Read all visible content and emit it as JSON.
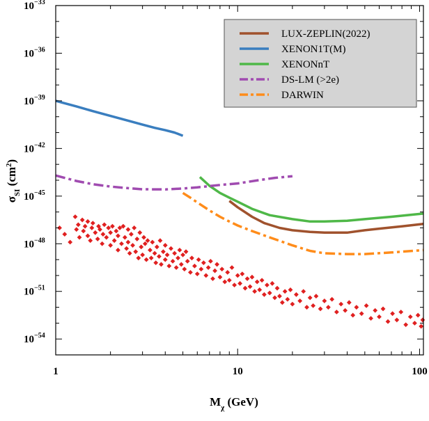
{
  "chart_data": {
    "type": "line",
    "title": "",
    "xlabel": {
      "main": "M",
      "sub": "χ",
      "rest": " (GeV)"
    },
    "ylabel": {
      "main": "σ",
      "sub": "SI",
      "rest": " (cm",
      "sup": "2",
      "close": ")"
    },
    "xscale": "log",
    "yscale": "log",
    "xlim": [
      1,
      105
    ],
    "ylim": [
      1e-55,
      1e-33
    ],
    "x_ticks": [
      {
        "value": 1,
        "label": "1"
      },
      {
        "value": 10,
        "label": "10"
      },
      {
        "value": 100,
        "label": "100"
      }
    ],
    "y_ticks": [
      {
        "exp": -33,
        "base": "10",
        "sup": "−33"
      },
      {
        "exp": -36,
        "base": "10",
        "sup": "−36"
      },
      {
        "exp": -39,
        "base": "10",
        "sup": "−39"
      },
      {
        "exp": -42,
        "base": "10",
        "sup": "−42"
      },
      {
        "exp": -45,
        "base": "10",
        "sup": "−45"
      },
      {
        "exp": -48,
        "base": "10",
        "sup": "−48"
      },
      {
        "exp": -51,
        "base": "10",
        "sup": "−51"
      },
      {
        "exp": -54,
        "base": "10",
        "sup": "−54"
      }
    ],
    "grid": false,
    "legend_position": "top-right",
    "series": [
      {
        "name": "LUX-ZEPLIN(2022)",
        "color": "#a0522d",
        "dash": "solid",
        "points": [
          [
            9,
            -45.3
          ],
          [
            10,
            -45.7
          ],
          [
            12,
            -46.3
          ],
          [
            14,
            -46.7
          ],
          [
            17,
            -47.0
          ],
          [
            20,
            -47.15
          ],
          [
            25,
            -47.25
          ],
          [
            30,
            -47.3
          ],
          [
            40,
            -47.3
          ],
          [
            50,
            -47.15
          ],
          [
            60,
            -47.05
          ],
          [
            80,
            -46.9
          ],
          [
            105,
            -46.75
          ]
        ]
      },
      {
        "name": "XENON1T(M)",
        "color": "#3a7ebf",
        "dash": "solid",
        "points": [
          [
            1,
            -39.0
          ],
          [
            1.3,
            -39.35
          ],
          [
            1.6,
            -39.65
          ],
          [
            2,
            -39.95
          ],
          [
            2.5,
            -40.25
          ],
          [
            3,
            -40.5
          ],
          [
            3.5,
            -40.7
          ],
          [
            4,
            -40.85
          ],
          [
            4.5,
            -41.0
          ],
          [
            5,
            -41.2
          ]
        ]
      },
      {
        "name": "XENONnT",
        "color": "#4fb848",
        "dash": "solid",
        "points": [
          [
            6.2,
            -43.8
          ],
          [
            7,
            -44.35
          ],
          [
            8,
            -44.8
          ],
          [
            9,
            -45.1
          ],
          [
            10,
            -45.35
          ],
          [
            12,
            -45.8
          ],
          [
            15,
            -46.2
          ],
          [
            20,
            -46.45
          ],
          [
            25,
            -46.6
          ],
          [
            30,
            -46.6
          ],
          [
            40,
            -46.55
          ],
          [
            50,
            -46.45
          ],
          [
            70,
            -46.3
          ],
          [
            105,
            -46.1
          ]
        ]
      },
      {
        "name": "DS-LM (>2e)",
        "color": "#a04bb0",
        "dash": "dashdot",
        "points": [
          [
            1,
            -43.7
          ],
          [
            1.3,
            -44.05
          ],
          [
            1.6,
            -44.25
          ],
          [
            2,
            -44.4
          ],
          [
            2.5,
            -44.5
          ],
          [
            3,
            -44.57
          ],
          [
            4,
            -44.58
          ],
          [
            5,
            -44.52
          ],
          [
            6,
            -44.45
          ],
          [
            8,
            -44.3
          ],
          [
            10,
            -44.2
          ],
          [
            13,
            -44.0
          ],
          [
            16,
            -43.85
          ],
          [
            20,
            -43.75
          ]
        ]
      },
      {
        "name": "DARWIN",
        "color": "#ff8c1a",
        "dash": "dashdot",
        "points": [
          [
            5,
            -44.8
          ],
          [
            5.5,
            -45.1
          ],
          [
            6,
            -45.4
          ],
          [
            7,
            -45.9
          ],
          [
            8,
            -46.3
          ],
          [
            9,
            -46.6
          ],
          [
            10,
            -46.85
          ],
          [
            12,
            -47.2
          ],
          [
            15,
            -47.6
          ],
          [
            20,
            -48.1
          ],
          [
            25,
            -48.45
          ],
          [
            30,
            -48.6
          ],
          [
            40,
            -48.65
          ],
          [
            50,
            -48.65
          ],
          [
            70,
            -48.55
          ],
          [
            105,
            -48.4
          ]
        ]
      }
    ],
    "scatter": {
      "name": "",
      "color": "#e02020",
      "points": [
        [
          1.05,
          -47.0
        ],
        [
          1.12,
          -47.4
        ],
        [
          1.2,
          -47.9
        ],
        [
          1.28,
          -46.3
        ],
        [
          1.3,
          -47.1
        ],
        [
          1.33,
          -46.8
        ],
        [
          1.35,
          -47.6
        ],
        [
          1.4,
          -46.5
        ],
        [
          1.42,
          -47.2
        ],
        [
          1.45,
          -46.9
        ],
        [
          1.5,
          -47.5
        ],
        [
          1.5,
          -46.6
        ],
        [
          1.55,
          -47.8
        ],
        [
          1.58,
          -47.0
        ],
        [
          1.6,
          -46.7
        ],
        [
          1.65,
          -47.3
        ],
        [
          1.7,
          -47.7
        ],
        [
          1.72,
          -46.9
        ],
        [
          1.75,
          -47.1
        ],
        [
          1.8,
          -48.0
        ],
        [
          1.82,
          -47.4
        ],
        [
          1.85,
          -46.8
        ],
        [
          1.9,
          -47.6
        ],
        [
          1.95,
          -47.0
        ],
        [
          2.0,
          -48.1
        ],
        [
          2.0,
          -47.3
        ],
        [
          2.05,
          -46.9
        ],
        [
          2.1,
          -47.8
        ],
        [
          2.15,
          -47.2
        ],
        [
          2.2,
          -48.4
        ],
        [
          2.2,
          -47.5
        ],
        [
          2.25,
          -47.0
        ],
        [
          2.3,
          -48.0
        ],
        [
          2.35,
          -46.9
        ],
        [
          2.4,
          -47.6
        ],
        [
          2.45,
          -48.3
        ],
        [
          2.5,
          -47.1
        ],
        [
          2.5,
          -47.9
        ],
        [
          2.55,
          -48.6
        ],
        [
          2.6,
          -47.4
        ],
        [
          2.65,
          -48.1
        ],
        [
          2.7,
          -47.0
        ],
        [
          2.75,
          -48.5
        ],
        [
          2.8,
          -47.7
        ],
        [
          2.85,
          -48.9
        ],
        [
          2.9,
          -47.3
        ],
        [
          2.95,
          -48.2
        ],
        [
          3.0,
          -48.7
        ],
        [
          3.05,
          -47.6
        ],
        [
          3.1,
          -48.0
        ],
        [
          3.15,
          -49.0
        ],
        [
          3.2,
          -47.8
        ],
        [
          3.3,
          -48.4
        ],
        [
          3.35,
          -48.9
        ],
        [
          3.4,
          -47.9
        ],
        [
          3.5,
          -48.6
        ],
        [
          3.55,
          -49.2
        ],
        [
          3.6,
          -48.2
        ],
        [
          3.7,
          -48.8
        ],
        [
          3.75,
          -47.8
        ],
        [
          3.8,
          -49.3
        ],
        [
          3.9,
          -48.5
        ],
        [
          4.0,
          -48.1
        ],
        [
          4.0,
          -49.0
        ],
        [
          4.1,
          -48.7
        ],
        [
          4.2,
          -49.4
        ],
        [
          4.3,
          -48.3
        ],
        [
          4.4,
          -49.1
        ],
        [
          4.5,
          -48.6
        ],
        [
          4.6,
          -49.5
        ],
        [
          4.7,
          -48.9
        ],
        [
          4.8,
          -48.4
        ],
        [
          4.9,
          -49.3
        ],
        [
          5.0,
          -48.7
        ],
        [
          5.1,
          -49.6
        ],
        [
          5.2,
          -48.5
        ],
        [
          5.3,
          -49.1
        ],
        [
          5.5,
          -49.8
        ],
        [
          5.6,
          -48.9
        ],
        [
          5.8,
          -49.4
        ],
        [
          6.0,
          -49.9
        ],
        [
          6.1,
          -49.0
        ],
        [
          6.3,
          -49.6
        ],
        [
          6.5,
          -49.2
        ],
        [
          6.7,
          -50.0
        ],
        [
          6.9,
          -49.5
        ],
        [
          7.1,
          -49.1
        ],
        [
          7.3,
          -50.2
        ],
        [
          7.5,
          -49.7
        ],
        [
          7.7,
          -49.3
        ],
        [
          8.0,
          -50.1
        ],
        [
          8.2,
          -49.6
        ],
        [
          8.5,
          -50.4
        ],
        [
          8.8,
          -49.8
        ],
        [
          9.0,
          -50.3
        ],
        [
          9.3,
          -49.5
        ],
        [
          9.6,
          -50.6
        ],
        [
          10.0,
          -50.0
        ],
        [
          10.3,
          -50.5
        ],
        [
          10.6,
          -49.9
        ],
        [
          11.0,
          -50.8
        ],
        [
          11.3,
          -50.2
        ],
        [
          11.7,
          -50.7
        ],
        [
          12.0,
          -50.1
        ],
        [
          12.4,
          -51.0
        ],
        [
          12.8,
          -50.4
        ],
        [
          13.2,
          -50.9
        ],
        [
          13.6,
          -50.3
        ],
        [
          14.0,
          -51.2
        ],
        [
          14.5,
          -50.6
        ],
        [
          15.0,
          -51.1
        ],
        [
          15.5,
          -50.5
        ],
        [
          16.0,
          -51.4
        ],
        [
          16.5,
          -50.8
        ],
        [
          17.0,
          -51.3
        ],
        [
          17.6,
          -51.7
        ],
        [
          18.2,
          -51.0
        ],
        [
          18.8,
          -51.5
        ],
        [
          19.5,
          -50.9
        ],
        [
          20.0,
          -51.8
        ],
        [
          21.0,
          -51.2
        ],
        [
          22.0,
          -51.6
        ],
        [
          23.0,
          -51.0
        ],
        [
          24.0,
          -52.0
        ],
        [
          25.0,
          -51.4
        ],
        [
          26.0,
          -51.9
        ],
        [
          27.0,
          -51.3
        ],
        [
          28.5,
          -52.1
        ],
        [
          30.0,
          -51.6
        ],
        [
          31.5,
          -52.0
        ],
        [
          33.0,
          -51.5
        ],
        [
          35.0,
          -52.3
        ],
        [
          37.0,
          -51.8
        ],
        [
          39.0,
          -52.2
        ],
        [
          41.0,
          -51.7
        ],
        [
          43.0,
          -52.5
        ],
        [
          45.0,
          -52.0
        ],
        [
          48.0,
          -52.4
        ],
        [
          51.0,
          -51.9
        ],
        [
          54.0,
          -52.7
        ],
        [
          57.0,
          -52.2
        ],
        [
          60.0,
          -52.6
        ],
        [
          63.0,
          -52.1
        ],
        [
          67.0,
          -52.9
        ],
        [
          71.0,
          -52.4
        ],
        [
          75.0,
          -52.8
        ],
        [
          79.0,
          -52.3
        ],
        [
          84.0,
          -53.1
        ],
        [
          89.0,
          -52.6
        ],
        [
          94.0,
          -53.0
        ],
        [
          98.0,
          -52.5
        ],
        [
          102.0,
          -53.2
        ],
        [
          104.0,
          -52.8
        ]
      ]
    }
  }
}
